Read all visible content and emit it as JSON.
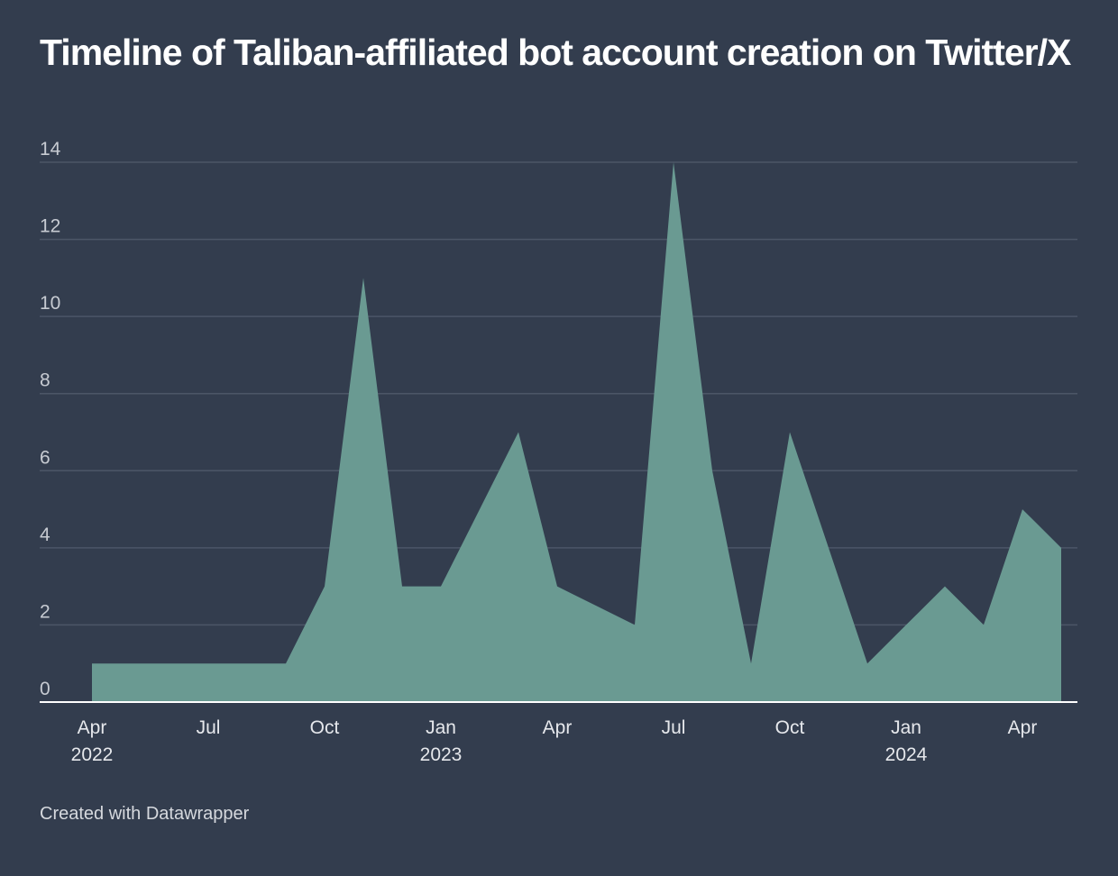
{
  "title": "Timeline of Taliban-affiliated bot account creation on Twitter/X",
  "footer": "Created with Datawrapper",
  "colors": {
    "background": "#333d4e",
    "area": "#6a9a92",
    "gridline": "#4c5667",
    "baseline": "#ffffff"
  },
  "chart_data": {
    "type": "area",
    "title": "Timeline of Taliban-affiliated bot account creation on Twitter/X",
    "xlabel": "",
    "ylabel": "",
    "ylim": [
      0,
      14
    ],
    "yticks": [
      "0",
      "2",
      "4",
      "6",
      "8",
      "10",
      "12",
      "14"
    ],
    "grid": true,
    "xticks": [
      {
        "month": "Apr",
        "year": "2022",
        "date": "2022-04"
      },
      {
        "month": "Jul",
        "year": "",
        "date": "2022-07"
      },
      {
        "month": "Oct",
        "year": "",
        "date": "2022-10"
      },
      {
        "month": "Jan",
        "year": "2023",
        "date": "2023-01"
      },
      {
        "month": "Apr",
        "year": "",
        "date": "2023-04"
      },
      {
        "month": "Jul",
        "year": "",
        "date": "2023-07"
      },
      {
        "month": "Oct",
        "year": "",
        "date": "2023-10"
      },
      {
        "month": "Jan",
        "year": "2024",
        "date": "2024-01"
      },
      {
        "month": "Apr",
        "year": "",
        "date": "2024-04"
      }
    ],
    "series": [
      {
        "x": [
          "2022-04",
          "2022-05",
          "2022-06",
          "2022-07",
          "2022-08",
          "2022-09",
          "2022-10",
          "2022-11",
          "2022-12",
          "2023-01",
          "2023-02",
          "2023-03",
          "2023-04",
          "2023-05",
          "2023-06",
          "2023-07",
          "2023-08",
          "2023-09",
          "2023-10",
          "2023-11",
          "2023-12",
          "2024-01",
          "2024-02",
          "2024-03",
          "2024-04",
          "2024-05"
        ],
        "values": [
          1,
          1,
          1,
          1,
          1,
          1,
          3,
          11,
          3,
          3,
          5,
          7,
          3,
          2.5,
          2,
          14,
          6,
          1,
          7,
          4,
          1,
          2,
          3,
          2,
          5,
          4
        ]
      }
    ]
  }
}
